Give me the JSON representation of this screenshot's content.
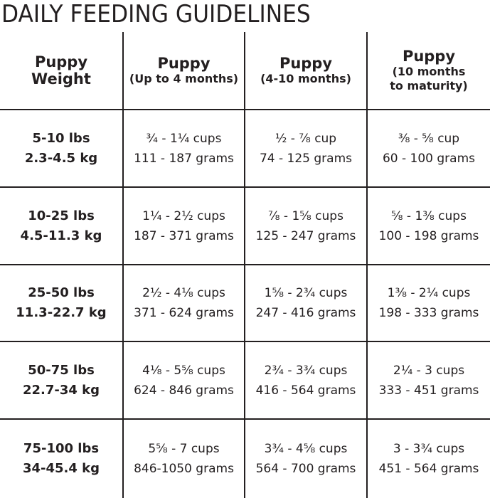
{
  "title": "DAILY FEEDING GUIDELINES",
  "headers": [
    {
      "main": "Puppy Weight",
      "sub": ""
    },
    {
      "main": "Puppy",
      "sub": "(Up to 4 months)"
    },
    {
      "main": "Puppy",
      "sub": "(4-10 months)"
    },
    {
      "main": "Puppy",
      "sub": "(10 months to maturity)"
    }
  ],
  "rows": [
    {
      "weight_lbs": "5-10 lbs",
      "weight_kg": "2.3-4.5 kg",
      "cells": [
        {
          "cups": "¾ - 1¼ cups",
          "grams": "111 - 187 grams"
        },
        {
          "cups": "½ - ⅞ cup",
          "grams": "74 - 125 grams"
        },
        {
          "cups": "⅜ - ⅝ cup",
          "grams": "60 - 100 grams"
        }
      ]
    },
    {
      "weight_lbs": "10-25 lbs",
      "weight_kg": "4.5-11.3 kg",
      "cells": [
        {
          "cups": "1¼ - 2½ cups",
          "grams": "187 - 371 grams"
        },
        {
          "cups": "⅞ - 1⅝ cups",
          "grams": "125 - 247 grams"
        },
        {
          "cups": "⅝ - 1⅜ cups",
          "grams": "100 - 198 grams"
        }
      ]
    },
    {
      "weight_lbs": "25-50 lbs",
      "weight_kg": "11.3-22.7 kg",
      "cells": [
        {
          "cups": "2½ - 4⅛ cups",
          "grams": "371 - 624 grams"
        },
        {
          "cups": "1⅝ - 2¾ cups",
          "grams": "247 - 416 grams"
        },
        {
          "cups": "1⅜ - 2¼ cups",
          "grams": "198 - 333 grams"
        }
      ]
    },
    {
      "weight_lbs": "50-75 lbs",
      "weight_kg": "22.7-34 kg",
      "cells": [
        {
          "cups": "4⅛ - 5⅝ cups",
          "grams": "624 - 846 grams"
        },
        {
          "cups": "2¾ - 3¾ cups",
          "grams": "416 - 564 grams"
        },
        {
          "cups": "2¼ - 3 cups",
          "grams": "333 - 451 grams"
        }
      ]
    },
    {
      "weight_lbs": "75-100 lbs",
      "weight_kg": "34-45.4 kg",
      "cells": [
        {
          "cups": "5⅝ - 7 cups",
          "grams": "846-1050 grams"
        },
        {
          "cups": "3¾ - 4⅝ cups",
          "grams": "564 - 700 grams"
        },
        {
          "cups": "3 - 3¾ cups",
          "grams": "451 - 564 grams"
        }
      ]
    }
  ],
  "colors": {
    "text": "#231f20",
    "lines": "#231f20",
    "background": "#ffffff"
  }
}
